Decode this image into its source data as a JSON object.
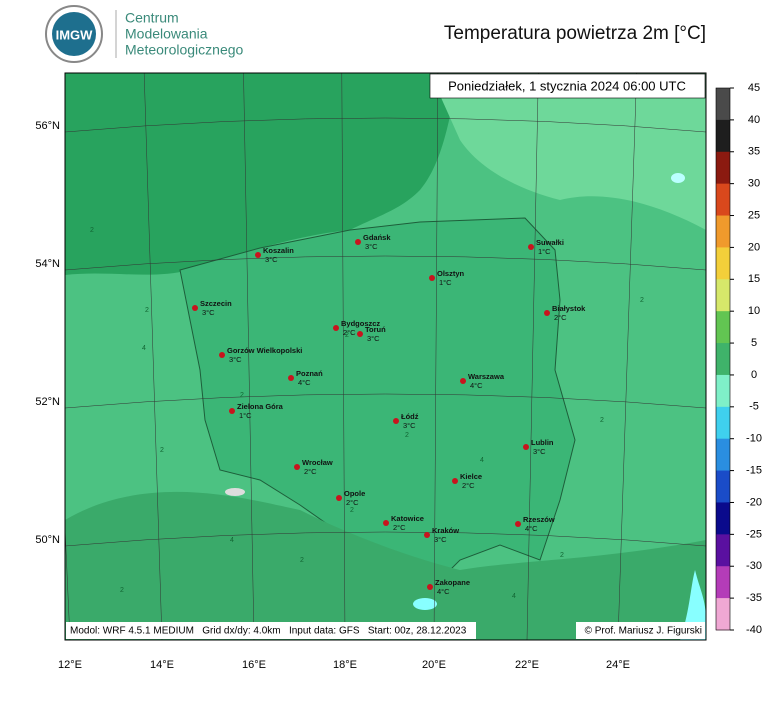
{
  "header": {
    "logo_text": "IMGW",
    "logo_lines": [
      "Centrum",
      "Modelowania",
      "Meteorologicznego"
    ],
    "title": "Temperatura powietrza 2m [°C]"
  },
  "map": {
    "date": "Poniedziałek, 1 stycznia 2024 06:00 UTC",
    "lat_labels": [
      "56°N",
      "54°N",
      "52°N",
      "50°N"
    ],
    "lon_labels": [
      "12°E",
      "14°E",
      "16°E",
      "18°E",
      "20°E",
      "22°E",
      "24°E"
    ],
    "cities": [
      {
        "name": "Koszalin",
        "temperature": "3°C"
      },
      {
        "name": "Gdańsk",
        "temperature": "3°C"
      },
      {
        "name": "Suwałki",
        "temperature": "1°C"
      },
      {
        "name": "Olsztyn",
        "temperature": "1°C"
      },
      {
        "name": "Szczecin",
        "temperature": "3°C"
      },
      {
        "name": "Białystok",
        "temperature": "2°C"
      },
      {
        "name": "Bydgoszcz",
        "temperature": "2°C"
      },
      {
        "name": "Toruń",
        "temperature": "3°C"
      },
      {
        "name": "Gorzów Wielkopolski",
        "temperature": "3°C"
      },
      {
        "name": "Poznań",
        "temperature": "4°C"
      },
      {
        "name": "Warszawa",
        "temperature": "4°C"
      },
      {
        "name": "Zielona Góra",
        "temperature": "1°C"
      },
      {
        "name": "Łódź",
        "temperature": "3°C"
      },
      {
        "name": "Lublin",
        "temperature": "3°C"
      },
      {
        "name": "Wrocław",
        "temperature": "2°C"
      },
      {
        "name": "Kielce",
        "temperature": "2°C"
      },
      {
        "name": "Opole",
        "temperature": "2°C"
      },
      {
        "name": "Katowice",
        "temperature": "2°C"
      },
      {
        "name": "Rzeszów",
        "temperature": "4°C"
      },
      {
        "name": "Kraków",
        "temperature": "3°C"
      },
      {
        "name": "Zakopane",
        "temperature": "4°C"
      }
    ],
    "contour_labels": [
      "2",
      "2",
      "2",
      "4",
      "2",
      "2",
      "2",
      "2",
      "4",
      "2",
      "2",
      "2",
      "4",
      "2",
      "2",
      "4"
    ],
    "footer_left": "Modol: WRF 4.5.1 MEDIUM   Grid dx/dy: 4.0km   Input data: GFS   Start: 00z, 28.12.2023",
    "footer_right": "© Prof. Mariusz J. Figurski"
  },
  "colorbar": {
    "ticks": [
      45,
      40,
      35,
      30,
      25,
      20,
      15,
      10,
      5,
      0,
      -5,
      -10,
      -15,
      -20,
      -25,
      -30,
      -35,
      -40
    ],
    "colors": [
      "#4a4a4a",
      "#1e1e1e",
      "#8b1a10",
      "#d9481c",
      "#f09a2c",
      "#f3cf3a",
      "#d6e86a",
      "#62c552",
      "#3fb36a",
      "#7ff0c8",
      "#3fd0ee",
      "#2a8ee0",
      "#1a4cc8",
      "#0a0a8c",
      "#5a10a0",
      "#b43cb8",
      "#f0a8d4"
    ]
  }
}
